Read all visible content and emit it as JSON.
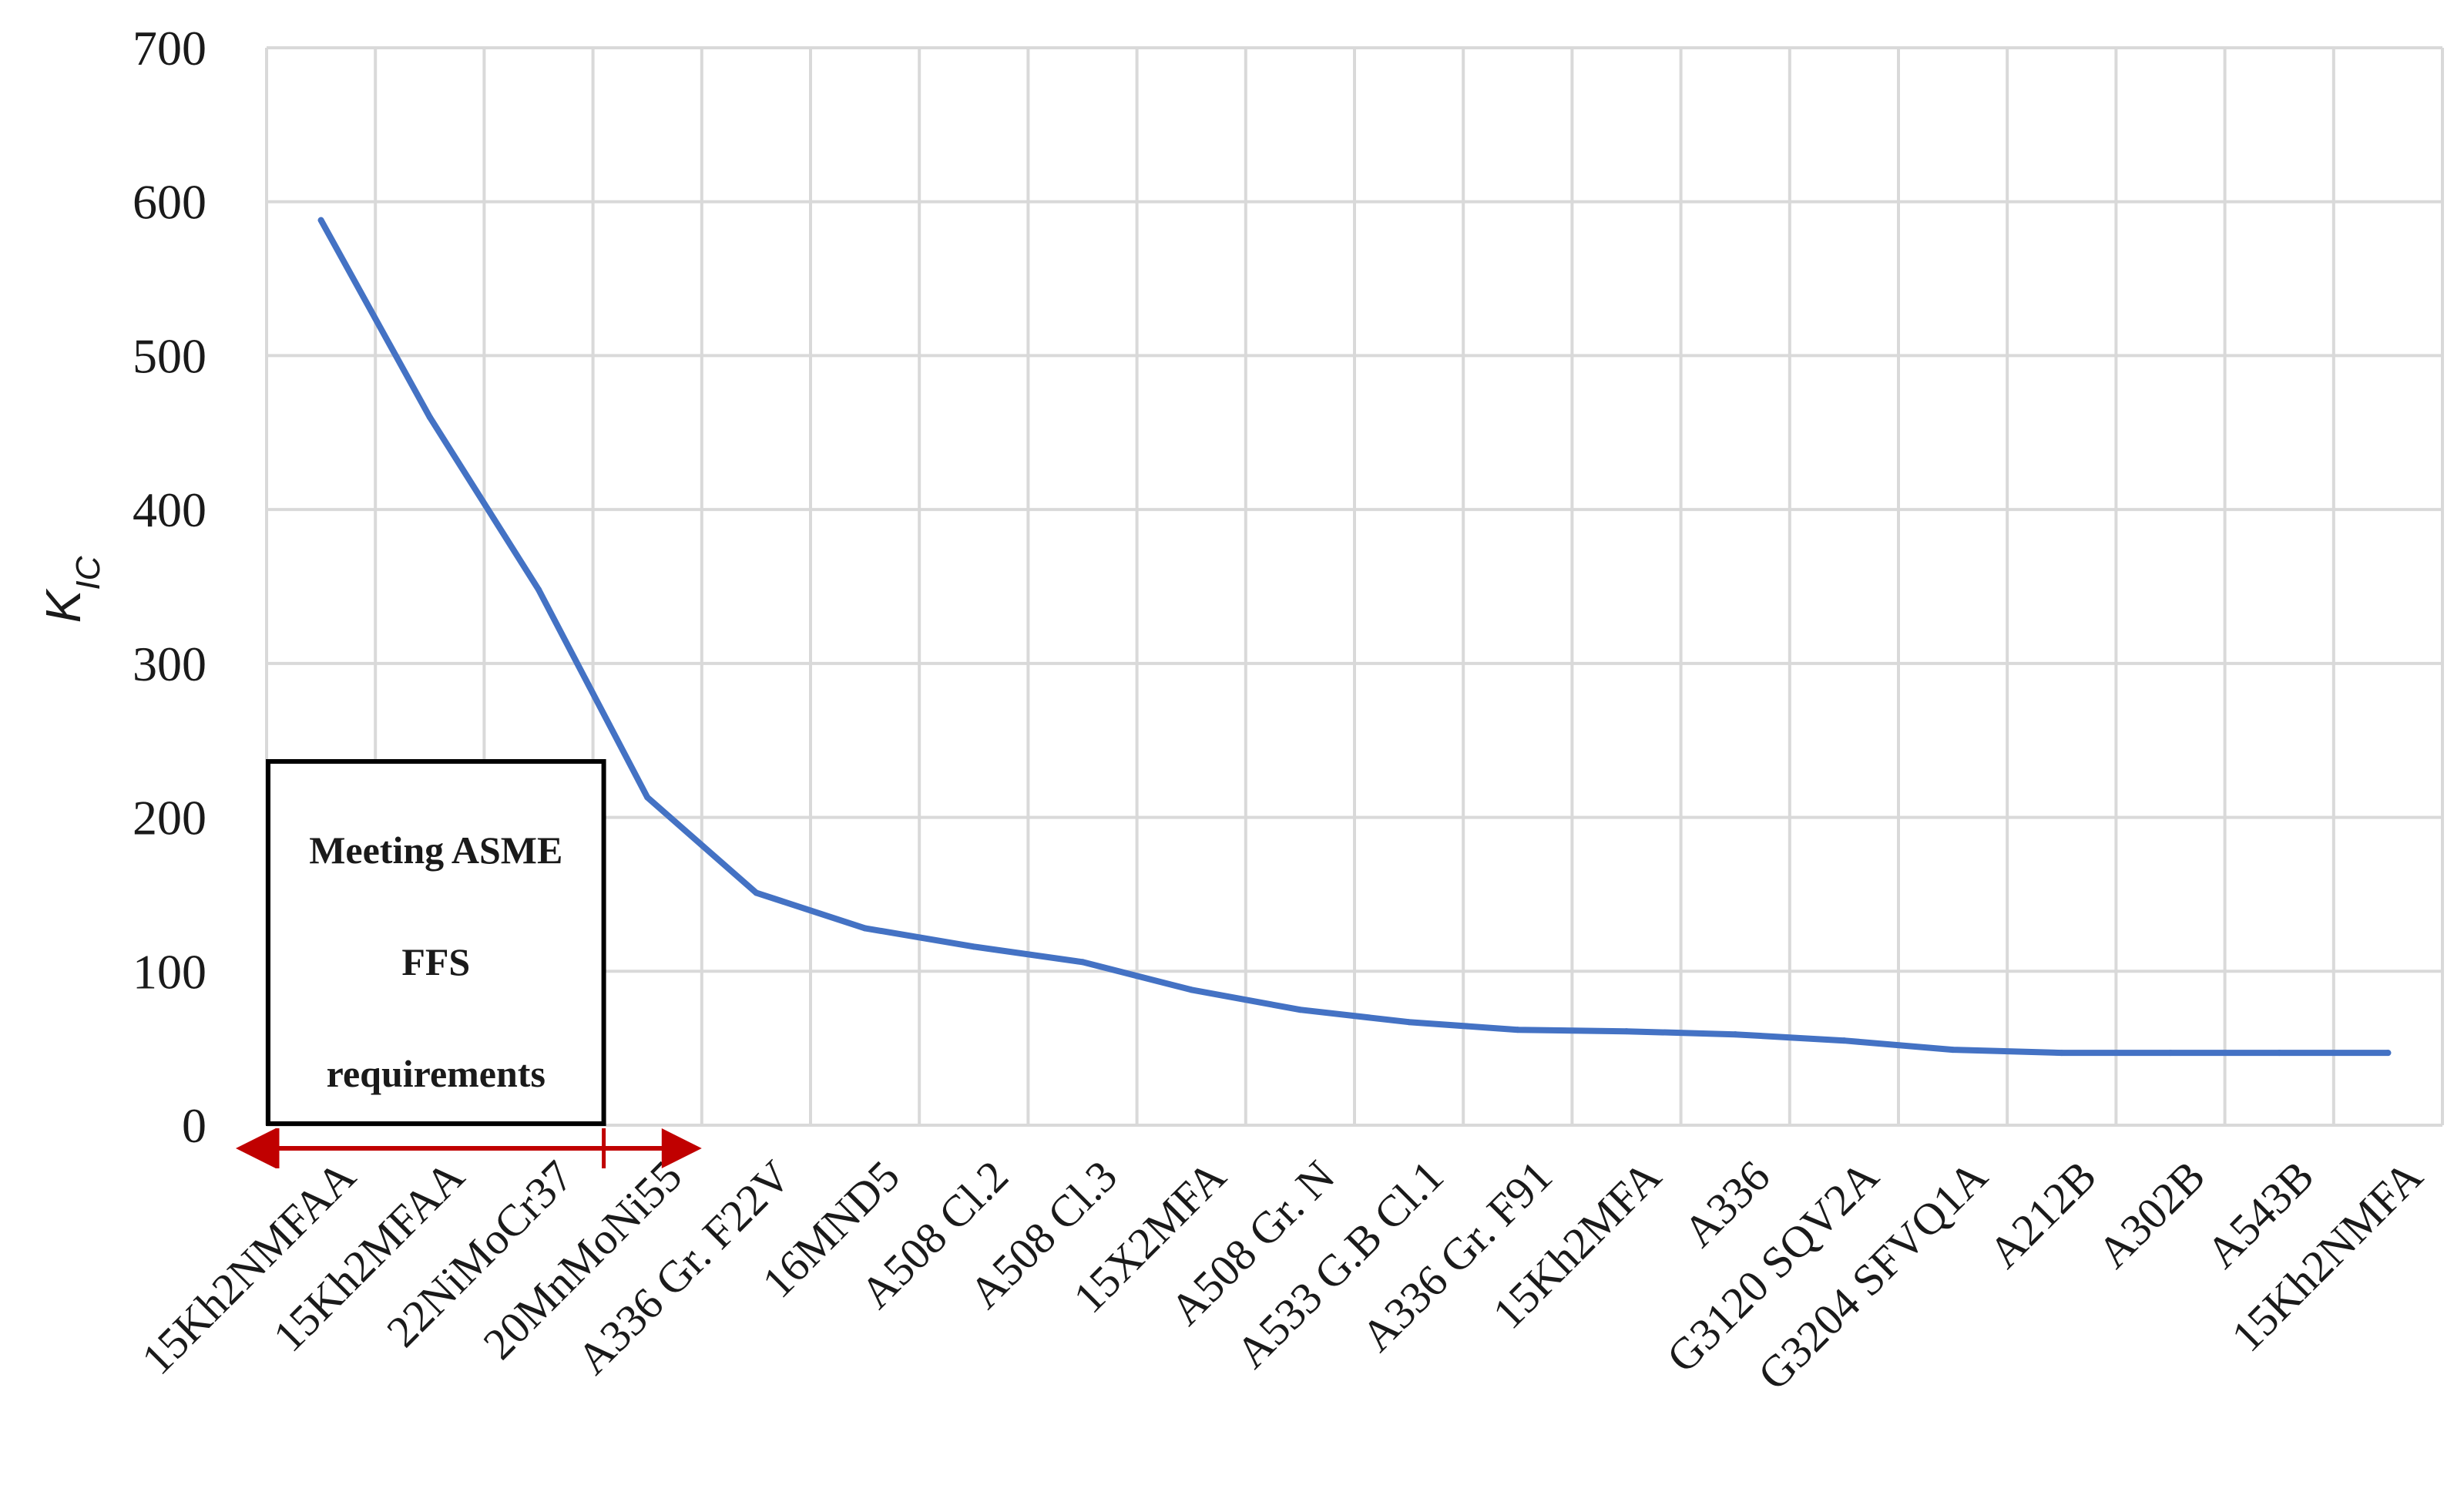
{
  "chart_data": {
    "type": "line",
    "title": "",
    "xlabel": "",
    "ylabel": "K",
    "ylabel_subscript": "IC",
    "ylim": [
      0,
      700
    ],
    "yticks": [
      0,
      100,
      200,
      300,
      400,
      500,
      600,
      700
    ],
    "grid": true,
    "categories": [
      "15Kh2NMFAA",
      "15Kh2MFAA",
      "22NiMoCr37",
      "20MnMoNi55",
      "A336 Gr. F22V",
      "16MND5",
      "A508 Cl.2",
      "A508 Cl.3",
      "15X2MFA",
      "A508 Gr. N",
      "A533 G.B Cl.1",
      "A336 Gr. F91",
      "15Kh2MFA",
      "A336",
      "G3120 SQV2A",
      "G3204 SFVQ1A",
      "A212B",
      "A302B",
      "A543B",
      "15Kh2NMFA"
    ],
    "series": [
      {
        "color": "#4472c4",
        "values": [
          588,
          460,
          348,
          213,
          151,
          128,
          116,
          106,
          88,
          75,
          67,
          62,
          61,
          59,
          55,
          49,
          47,
          47,
          47,
          47
        ]
      }
    ],
    "annotation": {
      "lines": [
        "Meeting ASME",
        "FFS",
        "requirements"
      ],
      "span": [
        "15Kh2NMFAA",
        "20MnMoNi55"
      ],
      "arrow_color": "#c00000"
    }
  }
}
